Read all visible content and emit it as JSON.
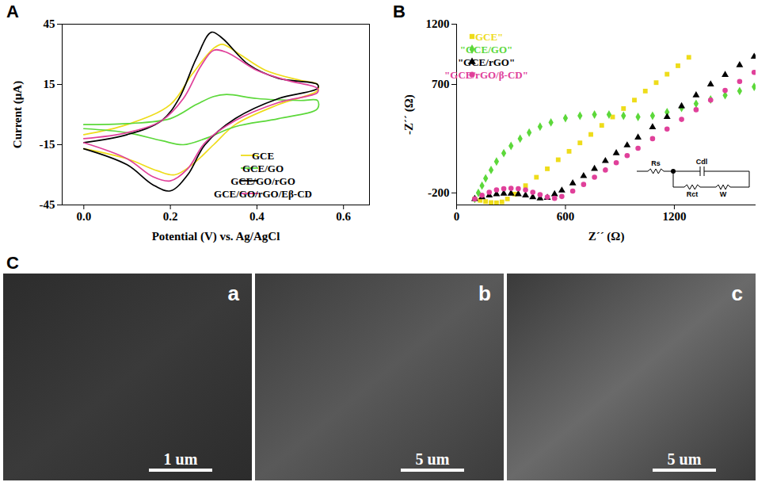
{
  "chart_data": [
    {
      "panel": "A",
      "type": "line",
      "x_label": "Potential (V) vs. Ag/AgCl",
      "y_label": "Current (μA)",
      "xlim": [
        -0.05,
        0.66
      ],
      "xticks": [
        {
          "value": 0,
          "label": "0.0"
        },
        {
          "value": 0.2,
          "label": "0.2"
        },
        {
          "value": 0.4,
          "label": "0.4"
        },
        {
          "value": 0.6,
          "label": "0.6"
        }
      ],
      "ylim": [
        -45,
        45
      ],
      "yticks": [
        -45,
        -15,
        15,
        45
      ],
      "grid": false,
      "legend": "lower right",
      "series": [
        {
          "name": "GCE",
          "color": "#eedc1a",
          "x": [
            0,
            0.1,
            0.2,
            0.25,
            0.3,
            0.32,
            0.36,
            0.42,
            0.5,
            0.54,
            0.54,
            0.45,
            0.35,
            0.3,
            0.25,
            0.21,
            0.17,
            0.1,
            0
          ],
          "values": [
            -10,
            -5,
            5,
            20,
            33,
            35,
            30,
            22,
            17,
            15,
            12,
            5,
            -5,
            -15,
            -25,
            -30,
            -28,
            -22,
            -17
          ]
        },
        {
          "name": "GCE/GO",
          "color": "#5cd83a",
          "x": [
            0,
            0.1,
            0.2,
            0.26,
            0.3,
            0.33,
            0.4,
            0.5,
            0.54,
            0.54,
            0.45,
            0.35,
            0.28,
            0.23,
            0.18,
            0.1,
            0
          ],
          "values": [
            -5,
            -4.5,
            -2,
            5,
            9,
            10,
            8,
            7,
            7,
            3,
            -2,
            -6,
            -12,
            -15,
            -13,
            -9,
            -7
          ]
        },
        {
          "name": "GCE/GO/rGO",
          "color": "#000000",
          "x": [
            0,
            0.1,
            0.18,
            0.22,
            0.26,
            0.295,
            0.32,
            0.38,
            0.45,
            0.54,
            0.54,
            0.45,
            0.35,
            0.28,
            0.24,
            0.2,
            0.16,
            0.1,
            0
          ],
          "values": [
            -14,
            -10,
            -3,
            8,
            28,
            41,
            38,
            25,
            18,
            15,
            13,
            8,
            -2,
            -15,
            -30,
            -38,
            -35,
            -25,
            -17
          ]
        },
        {
          "name": "GCE/GO/rGO/Eβ-CD",
          "color": "#e0409a",
          "x": [
            0,
            0.1,
            0.18,
            0.23,
            0.27,
            0.3,
            0.33,
            0.4,
            0.47,
            0.54,
            0.54,
            0.45,
            0.35,
            0.28,
            0.24,
            0.2,
            0.16,
            0.1,
            0
          ],
          "values": [
            -12,
            -9,
            -3,
            8,
            24,
            32,
            31,
            22,
            17,
            13,
            11,
            6,
            -3,
            -14,
            -27,
            -33,
            -31,
            -22,
            -14
          ]
        }
      ]
    },
    {
      "panel": "B",
      "type": "scatter",
      "x_label": "Z´´ (Ω)",
      "y_label": "-Z´´ (Ω)",
      "xlim": [
        0,
        1650
      ],
      "xticks": [
        0,
        600,
        1200
      ],
      "ylim": [
        -300,
        1200
      ],
      "yticks": [
        -200,
        700,
        1200
      ],
      "grid": false,
      "legend": "upper left",
      "inset": {
        "type": "circuit",
        "components": [
          "Rs",
          "Cdl",
          "Rct",
          "W"
        ]
      },
      "series": [
        {
          "name": "\"GCE\"",
          "color": "#eedc1a",
          "marker": "square",
          "x": [
            100,
            130,
            160,
            190,
            220,
            250,
            280,
            320,
            380,
            440,
            500,
            560,
            620,
            680,
            740,
            800,
            860,
            920,
            980,
            1040,
            1100,
            1160,
            1220,
            1280
          ],
          "values": [
            -250,
            -262,
            -272,
            -280,
            -282,
            -275,
            -250,
            -210,
            -140,
            -70,
            0,
            75,
            145,
            215,
            285,
            360,
            430,
            500,
            570,
            645,
            715,
            785,
            855,
            925
          ]
        },
        {
          "name": "\"GCE/GO\"",
          "color": "#5cd83a",
          "marker": "diamond",
          "x": [
            100,
            120,
            140,
            160,
            190,
            220,
            260,
            300,
            350,
            400,
            460,
            520,
            600,
            680,
            760,
            840,
            920,
            1000,
            1080,
            1160,
            1240,
            1320,
            1400,
            1480,
            1560,
            1640
          ],
          "values": [
            -250,
            -200,
            -140,
            -80,
            -10,
            60,
            130,
            190,
            250,
            300,
            350,
            385,
            420,
            440,
            450,
            450,
            440,
            430,
            440,
            470,
            505,
            540,
            575,
            610,
            645,
            680
          ]
        },
        {
          "name": "\"GCE/rGO\"",
          "color": "#000000",
          "marker": "triangle",
          "x": [
            100,
            140,
            180,
            220,
            260,
            300,
            340,
            380,
            420,
            460,
            500,
            540,
            580,
            640,
            700,
            760,
            820,
            880,
            940,
            1000,
            1080,
            1160,
            1240,
            1320,
            1400,
            1480,
            1560,
            1640
          ],
          "values": [
            -250,
            -235,
            -220,
            -210,
            -205,
            -205,
            -210,
            -220,
            -235,
            -245,
            -240,
            -210,
            -180,
            -120,
            -60,
            0,
            65,
            130,
            195,
            260,
            345,
            430,
            520,
            610,
            700,
            780,
            860,
            930
          ]
        },
        {
          "name": "\"GCE/rGO/β-CD\"",
          "color": "#e0409a",
          "marker": "circle",
          "x": [
            100,
            140,
            180,
            220,
            260,
            300,
            340,
            380,
            420,
            460,
            500,
            540,
            580,
            640,
            700,
            760,
            820,
            880,
            940,
            1000,
            1080,
            1160,
            1240,
            1320,
            1400,
            1480,
            1560,
            1640
          ],
          "values": [
            -250,
            -220,
            -195,
            -175,
            -165,
            -162,
            -165,
            -175,
            -195,
            -215,
            -235,
            -245,
            -230,
            -185,
            -130,
            -70,
            -10,
            50,
            110,
            170,
            250,
            330,
            410,
            490,
            570,
            650,
            725,
            800
          ]
        }
      ]
    }
  ],
  "panel_c": {
    "label": "C",
    "images": [
      {
        "label": "a",
        "scale_bar": "1 um"
      },
      {
        "label": "b",
        "scale_bar": "5 um"
      },
      {
        "label": "c",
        "scale_bar": "5 um"
      }
    ]
  }
}
